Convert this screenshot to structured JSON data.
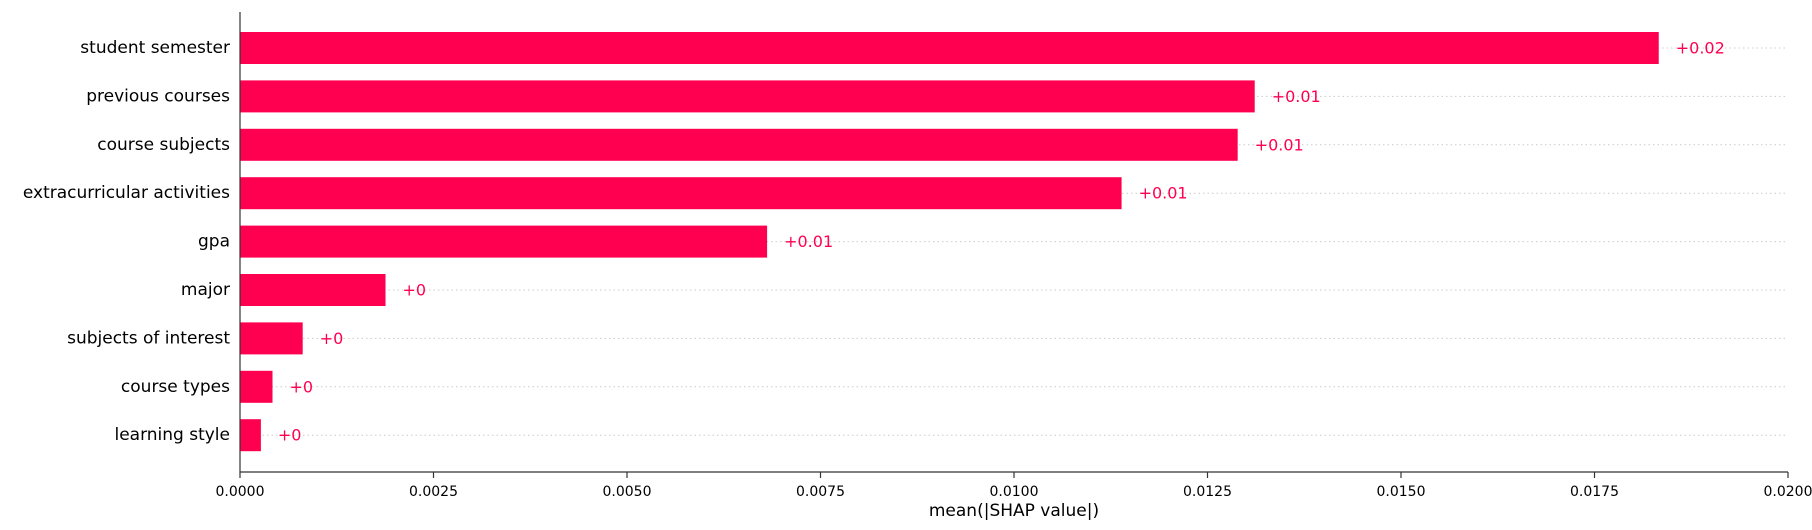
{
  "chart_data": {
    "type": "bar",
    "orientation": "horizontal",
    "categories": [
      "student semester",
      "previous courses",
      "course subjects",
      "extracurricular activities",
      "gpa",
      "major",
      "subjects of interest",
      "course types",
      "learning style"
    ],
    "values": [
      0.01833,
      0.01311,
      0.01289,
      0.01139,
      0.00681,
      0.00188,
      0.00081,
      0.00042,
      0.00027
    ],
    "data_labels": [
      "+0.02",
      "+0.01",
      "+0.01",
      "+0.01",
      "+0.01",
      "+0",
      "+0",
      "+0",
      "+0"
    ],
    "xlabel": "mean(|SHAP value|)",
    "xlim": [
      0,
      0.02
    ],
    "xticks": [
      0.0,
      0.0025,
      0.005,
      0.0075,
      0.01,
      0.0125,
      0.015,
      0.0175,
      0.02
    ],
    "xtick_labels": [
      "0.0000",
      "0.0025",
      "0.0050",
      "0.0075",
      "0.0100",
      "0.0125",
      "0.0150",
      "0.0175",
      "0.0200"
    ],
    "grid": "dotted horizontal guide lines per row",
    "bar_color": "#ff0051",
    "label_color": "#ff0051",
    "grid_color": "#cccccc",
    "axis_color": "#333333"
  }
}
